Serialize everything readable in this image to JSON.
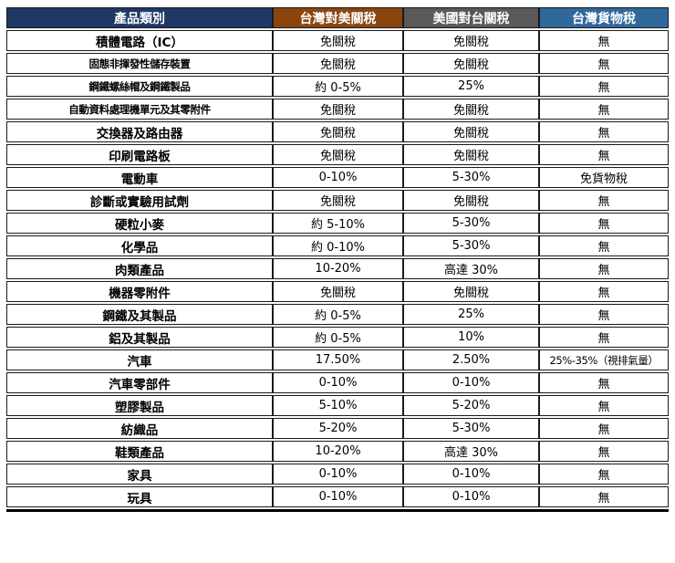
{
  "chart_data": {
    "type": "table",
    "title": "",
    "columns": [
      "產品類別",
      "台灣對美關稅",
      "美國對台關稅",
      "台灣貨物稅"
    ],
    "rows": [
      [
        "積體電路（IC）",
        "免關稅",
        "免關稅",
        "無"
      ],
      [
        "固態非揮發性儲存裝置",
        "免關稅",
        "免關稅",
        "無"
      ],
      [
        "鋼鐵螺絲帽及鋼鐵製品",
        "約 0-5%",
        "25%",
        "無"
      ],
      [
        "自動資料處理機單元及其零附件",
        "免關稅",
        "免關稅",
        "無"
      ],
      [
        "交換器及路由器",
        "免關稅",
        "免關稅",
        "無"
      ],
      [
        "印刷電路板",
        "免關稅",
        "免關稅",
        "無"
      ],
      [
        "電動車",
        "0-10%",
        "5-30%",
        "免貨物稅"
      ],
      [
        "診斷或實驗用試劑",
        "免關稅",
        "免關稅",
        "無"
      ],
      [
        "硬粒小麥",
        "約 5-10%",
        "5-30%",
        "無"
      ],
      [
        "化學品",
        "約 0-10%",
        "5-30%",
        "無"
      ],
      [
        "肉類產品",
        "10-20%",
        "高達 30%",
        "無"
      ],
      [
        "機器零附件",
        "免關稅",
        "免關稅",
        "無"
      ],
      [
        "鋼鐵及其製品",
        "約 0-5%",
        "25%",
        "無"
      ],
      [
        "鋁及其製品",
        "約 0-5%",
        "10%",
        "無"
      ],
      [
        "汽車",
        "17.50%",
        "2.50%",
        "25%-35%（視排氣量）"
      ],
      [
        "汽車零部件",
        "0-10%",
        "0-10%",
        "無"
      ],
      [
        "塑膠製品",
        "5-10%",
        "5-20%",
        "無"
      ],
      [
        "紡織品",
        "5-20%",
        "5-30%",
        "無"
      ],
      [
        "鞋類產品",
        "10-20%",
        "高達 30%",
        "無"
      ],
      [
        "家具",
        "0-10%",
        "0-10%",
        "無"
      ],
      [
        "玩具",
        "0-10%",
        "0-10%",
        "無"
      ]
    ]
  },
  "table": {
    "header": [
      {
        "label": "產品類別",
        "bg": "#1F3864"
      },
      {
        "label": "台灣對美關稅",
        "bg": "#8A450F"
      },
      {
        "label": "美國對台關稅",
        "bg": "#595959"
      },
      {
        "label": "台灣貨物稅",
        "bg": "#31689C"
      }
    ],
    "rows": [
      [
        "積體電路（IC）",
        "免關稅",
        "免關稅",
        "無"
      ],
      [
        "固態非揮發性儲存裝置",
        "免關稅",
        "免關稅",
        "無"
      ],
      [
        "鋼鐵螺絲帽及鋼鐵製品",
        "約 0-5%",
        "25%",
        "無"
      ],
      [
        "自動資料處理機單元及其零附件",
        "免關稅",
        "免關稅",
        "無"
      ],
      [
        "交換器及路由器",
        "免關稅",
        "免關稅",
        "無"
      ],
      [
        "印刷電路板",
        "免關稅",
        "免關稅",
        "無"
      ],
      [
        "電動車",
        "0-10%",
        "5-30%",
        "免貨物稅"
      ],
      [
        "診斷或實驗用試劑",
        "免關稅",
        "免關稅",
        "無"
      ],
      [
        "硬粒小麥",
        "約 5-10%",
        "5-30%",
        "無"
      ],
      [
        "化學品",
        "約 0-10%",
        "5-30%",
        "無"
      ],
      [
        "肉類產品",
        "10-20%",
        "高達 30%",
        "無"
      ],
      [
        "機器零附件",
        "免關稅",
        "免關稅",
        "無"
      ],
      [
        "鋼鐵及其製品",
        "約 0-5%",
        "25%",
        "無"
      ],
      [
        "鋁及其製品",
        "約 0-5%",
        "10%",
        "無"
      ],
      [
        "汽車",
        "17.50%",
        "2.50%",
        "25%-35%（視排氣量）"
      ],
      [
        "汽車零部件",
        "0-10%",
        "0-10%",
        "無"
      ],
      [
        "塑膠製品",
        "5-10%",
        "5-20%",
        "無"
      ],
      [
        "紡織品",
        "5-20%",
        "5-30%",
        "無"
      ],
      [
        "鞋類產品",
        "10-20%",
        "高達 30%",
        "無"
      ],
      [
        "家具",
        "0-10%",
        "0-10%",
        "無"
      ],
      [
        "玩具",
        "0-10%",
        "0-10%",
        "無"
      ]
    ]
  },
  "colors": {
    "header_product_bg": "#1F3864",
    "header_tw_on_us_bg": "#8A450F",
    "header_us_on_tw_bg": "#595959",
    "header_commodity_bg": "#31689C",
    "header_text": "#FFFFFF",
    "body_text": "#000000",
    "border": "#1A1A1A"
  }
}
